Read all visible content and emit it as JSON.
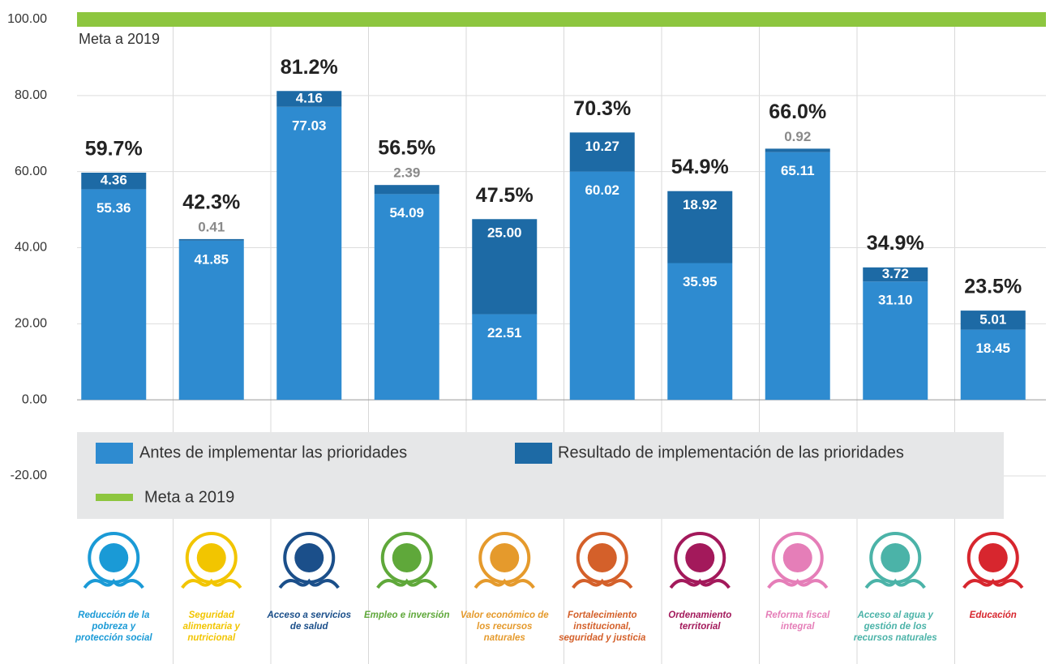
{
  "chart_data": {
    "type": "stacked_bar",
    "categories": [
      "Reducción de la pobreza y protección social",
      "Seguridad alimentaria y nutricional",
      "Acceso a servicios de salud",
      "Empleo e inversión",
      "Valor económico de los recursos naturales",
      "Fortalecimiento institucional, seguridad y justicia",
      "Ordenamiento territorial",
      "Reforma fiscal integral",
      "Acceso al agua y gestión de los recursos naturales",
      "Educación"
    ],
    "category_colors": [
      "#1a9ad6",
      "#f2c500",
      "#1b4f8a",
      "#5fa83a",
      "#e59a2c",
      "#d4602a",
      "#a3195b",
      "#e57eb8",
      "#4bb3a8",
      "#d7262e"
    ],
    "series": [
      {
        "name": "Antes de implementar las prioridades",
        "color": "#2e8bd0",
        "values": [
          55.36,
          41.85,
          77.03,
          54.09,
          22.51,
          60.02,
          35.95,
          65.11,
          31.1,
          18.45
        ],
        "value_labels": [
          "55.36",
          "41.85",
          "77.03",
          "54.09",
          "22.51",
          "60.02",
          "35.95",
          "65.11",
          "31.10",
          "18.45"
        ]
      },
      {
        "name": "Resultado de implementación de las prioridades",
        "color": "#1d6aa5",
        "values": [
          4.36,
          0.41,
          4.16,
          2.39,
          25.0,
          10.27,
          18.92,
          0.92,
          3.72,
          5.01
        ],
        "value_labels": [
          "4.36",
          "0.41",
          "4.16",
          "2.39",
          "25.00",
          "10.27",
          "18.92",
          "0.92",
          "3.72",
          "5.01"
        ]
      }
    ],
    "totals": [
      59.7,
      42.3,
      81.2,
      56.5,
      47.5,
      70.3,
      54.9,
      66.0,
      34.9,
      23.5
    ],
    "total_labels": [
      "59.7%",
      "42.3%",
      "81.2%",
      "56.5%",
      "47.5%",
      "70.3%",
      "54.9%",
      "66.0%",
      "34.9%",
      "23.5%"
    ],
    "goal": {
      "name": "Meta a 2019",
      "value": 100,
      "color": "#8dc63f"
    },
    "ylim": [
      -20,
      100
    ],
    "yticks": [
      {
        "value": -20,
        "label": "-20.00"
      },
      {
        "value": 0,
        "label": "0.00"
      },
      {
        "value": 20,
        "label": "20.00"
      },
      {
        "value": 40,
        "label": "40.00"
      },
      {
        "value": 60,
        "label": "60.00"
      },
      {
        "value": 80,
        "label": "80.00"
      },
      {
        "value": 100,
        "label": "100.00"
      }
    ],
    "grid": true
  }
}
